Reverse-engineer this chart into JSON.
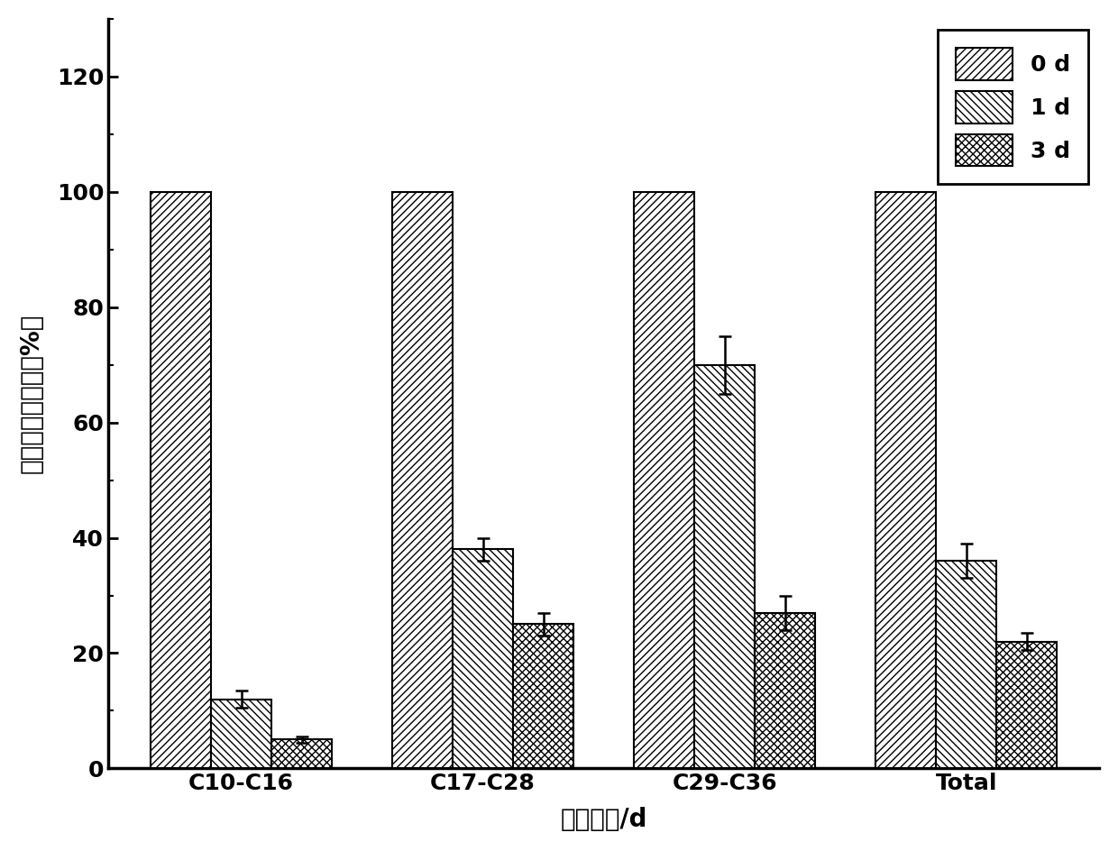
{
  "categories": [
    "C10-C16",
    "C17-C28",
    "C29-C36",
    "Total"
  ],
  "series": [
    {
      "label": "0 d",
      "values": [
        100,
        100,
        100,
        100
      ],
      "errors": [
        0,
        0,
        0,
        0
      ],
      "hatch": "////",
      "facecolor": "#ffffff",
      "edgecolor": "#000000"
    },
    {
      "label": "1 d",
      "values": [
        12,
        38,
        70,
        36
      ],
      "errors": [
        1.5,
        2.0,
        5.0,
        3.0
      ],
      "hatch": "////",
      "facecolor": "#aaaaaa",
      "edgecolor": "#000000"
    },
    {
      "label": "3 d",
      "values": [
        5,
        25,
        27,
        22
      ],
      "errors": [
        0.5,
        2.0,
        3.0,
        1.5
      ],
      "hatch": "xxxx",
      "facecolor": "#555555",
      "edgecolor": "#000000"
    }
  ],
  "ylabel": "剩余石油烃含量（%）",
  "xlabel": "降解天数/d",
  "ylim": [
    0,
    130
  ],
  "yticks": [
    0,
    20,
    40,
    60,
    80,
    100,
    120
  ],
  "bar_width": 0.25,
  "background_color": "#ffffff",
  "label_fontsize": 20,
  "tick_fontsize": 18,
  "legend_fontsize": 18
}
